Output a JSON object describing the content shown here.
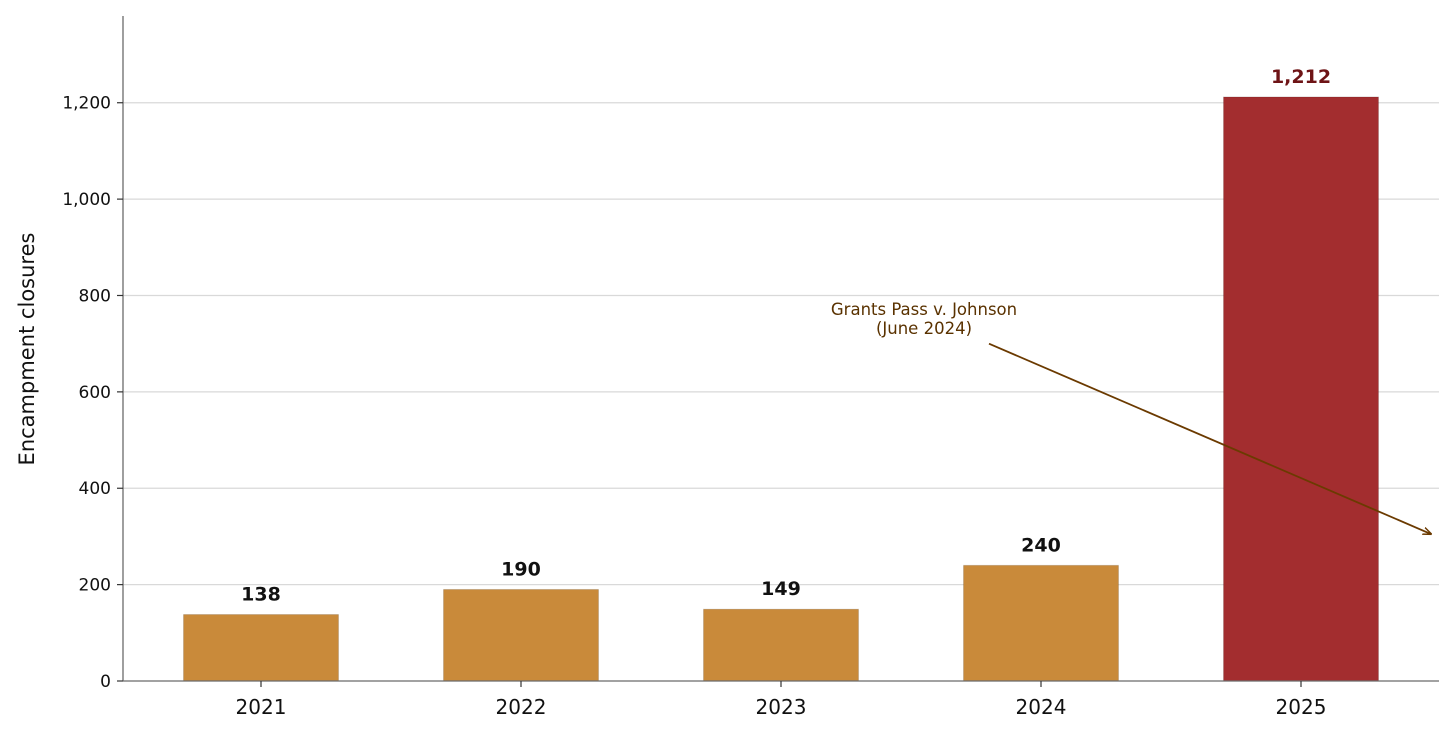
{
  "chart_data": {
    "type": "bar",
    "categories": [
      "2021",
      "2022",
      "2023",
      "2024",
      "2025"
    ],
    "values": [
      138,
      190,
      149,
      240,
      1212
    ],
    "value_labels": [
      "138",
      "190",
      "149",
      "240",
      "1,212"
    ],
    "bar_colors": [
      "#c98a3a",
      "#c98a3a",
      "#c98a3a",
      "#c98a3a",
      "#a32d2f"
    ],
    "label_colors": [
      "#111111",
      "#111111",
      "#111111",
      "#111111",
      "#6e1416"
    ],
    "title": "",
    "xlabel": "",
    "ylabel": "Encampment closures",
    "ylim": [
      0,
      1380
    ],
    "yticks": [
      0,
      200,
      400,
      600,
      800,
      1000,
      1200
    ],
    "ytick_labels": [
      "0",
      "200",
      "400",
      "600",
      "800",
      "1,000",
      "1,200"
    ],
    "grid": "horizontal",
    "legend": "none",
    "annotation": {
      "lines": [
        "Grants Pass v. Johnson",
        "(June 2024)"
      ],
      "color": "#5a3200",
      "arrow_color": "#6b3a00",
      "text_x": 2.55,
      "text_y": 760,
      "arrow_tail_x": 2.8,
      "arrow_tail_y": 700,
      "arrow_head_x": 4.5,
      "arrow_head_y": 305
    }
  }
}
